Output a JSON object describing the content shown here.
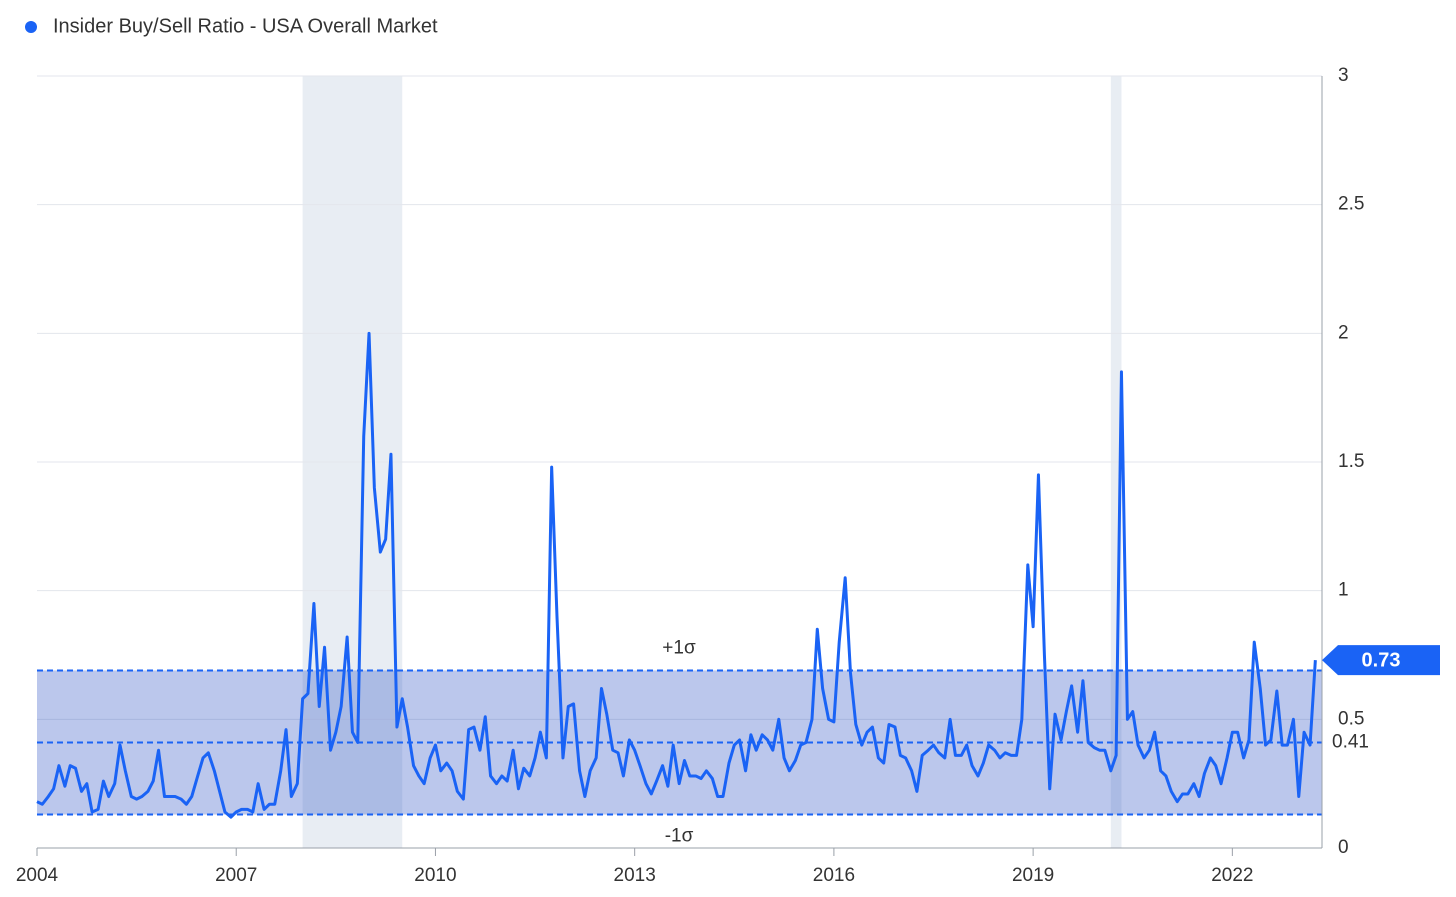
{
  "chart_data": {
    "type": "line",
    "legend_label_dot_color": "#1a63f5",
    "series": [
      {
        "name": "Insider Buy/Sell Ratio - USA Overall Market",
        "color": "#1a63f5",
        "values": [
          0.18,
          0.17,
          0.2,
          0.23,
          0.32,
          0.24,
          0.32,
          0.31,
          0.22,
          0.25,
          0.14,
          0.15,
          0.26,
          0.2,
          0.25,
          0.4,
          0.3,
          0.2,
          0.19,
          0.2,
          0.22,
          0.26,
          0.38,
          0.2,
          0.2,
          0.2,
          0.19,
          0.17,
          0.2,
          0.28,
          0.35,
          0.37,
          0.3,
          0.22,
          0.14,
          0.12,
          0.14,
          0.15,
          0.15,
          0.14,
          0.25,
          0.15,
          0.17,
          0.17,
          0.3,
          0.46,
          0.2,
          0.25,
          0.58,
          0.6,
          0.95,
          0.55,
          0.78,
          0.38,
          0.45,
          0.55,
          0.82,
          0.45,
          0.41,
          1.6,
          2.0,
          1.4,
          1.15,
          1.2,
          1.53,
          0.47,
          0.58,
          0.47,
          0.32,
          0.28,
          0.25,
          0.35,
          0.4,
          0.3,
          0.33,
          0.3,
          0.22,
          0.19,
          0.46,
          0.47,
          0.38,
          0.51,
          0.28,
          0.25,
          0.28,
          0.26,
          0.38,
          0.23,
          0.31,
          0.28,
          0.35,
          0.45,
          0.35,
          1.48,
          0.9,
          0.35,
          0.55,
          0.56,
          0.3,
          0.2,
          0.3,
          0.35,
          0.62,
          0.52,
          0.38,
          0.37,
          0.28,
          0.42,
          0.38,
          0.32,
          0.25,
          0.21,
          0.26,
          0.32,
          0.24,
          0.4,
          0.25,
          0.34,
          0.28,
          0.28,
          0.27,
          0.3,
          0.27,
          0.2,
          0.2,
          0.33,
          0.4,
          0.42,
          0.3,
          0.44,
          0.38,
          0.44,
          0.42,
          0.38,
          0.5,
          0.35,
          0.3,
          0.34,
          0.4,
          0.41,
          0.5,
          0.85,
          0.62,
          0.5,
          0.49,
          0.8,
          1.05,
          0.68,
          0.48,
          0.4,
          0.45,
          0.47,
          0.35,
          0.33,
          0.48,
          0.47,
          0.36,
          0.35,
          0.3,
          0.22,
          0.36,
          0.38,
          0.4,
          0.37,
          0.35,
          0.5,
          0.36,
          0.36,
          0.4,
          0.32,
          0.28,
          0.33,
          0.4,
          0.38,
          0.35,
          0.37,
          0.36,
          0.36,
          0.5,
          1.1,
          0.86,
          1.45,
          0.75,
          0.23,
          0.52,
          0.42,
          0.53,
          0.63,
          0.45,
          0.65,
          0.41,
          0.39,
          0.38,
          0.38,
          0.3,
          0.36,
          1.85,
          0.5,
          0.53,
          0.4,
          0.35,
          0.38,
          0.45,
          0.3,
          0.28,
          0.22,
          0.18,
          0.21,
          0.21,
          0.25,
          0.2,
          0.29,
          0.35,
          0.32,
          0.25,
          0.35,
          0.45,
          0.45,
          0.35,
          0.42,
          0.8,
          0.62,
          0.4,
          0.42,
          0.61,
          0.4,
          0.4,
          0.5,
          0.2,
          0.45,
          0.4,
          0.73
        ]
      }
    ],
    "x": [
      2004,
      2004.08,
      2004.17,
      2004.25,
      2004.33,
      2004.42,
      2004.5,
      2004.58,
      2004.67,
      2004.75,
      2004.83,
      2004.92,
      2005,
      2005.08,
      2005.17,
      2005.25,
      2005.33,
      2005.42,
      2005.5,
      2005.58,
      2005.67,
      2005.75,
      2005.83,
      2005.92,
      2006,
      2006.08,
      2006.17,
      2006.25,
      2006.33,
      2006.42,
      2006.5,
      2006.58,
      2006.67,
      2006.75,
      2006.83,
      2006.92,
      2007,
      2007.08,
      2007.17,
      2007.25,
      2007.33,
      2007.42,
      2007.5,
      2007.58,
      2007.67,
      2007.75,
      2007.83,
      2007.92,
      2008,
      2008.08,
      2008.17,
      2008.25,
      2008.33,
      2008.42,
      2008.5,
      2008.58,
      2008.67,
      2008.75,
      2008.83,
      2008.92,
      2009,
      2009.08,
      2009.17,
      2009.25,
      2009.33,
      2009.42,
      2009.5,
      2009.58,
      2009.67,
      2009.75,
      2009.83,
      2009.92,
      2010,
      2010.08,
      2010.17,
      2010.25,
      2010.33,
      2010.42,
      2010.5,
      2010.58,
      2010.67,
      2010.75,
      2010.83,
      2010.92,
      2011,
      2011.08,
      2011.17,
      2011.25,
      2011.33,
      2011.42,
      2011.5,
      2011.58,
      2011.67,
      2011.75,
      2011.83,
      2011.92,
      2012,
      2012.08,
      2012.17,
      2012.25,
      2012.33,
      2012.42,
      2012.5,
      2012.58,
      2012.67,
      2012.75,
      2012.83,
      2012.92,
      2013,
      2013.08,
      2013.17,
      2013.25,
      2013.33,
      2013.42,
      2013.5,
      2013.58,
      2013.67,
      2013.75,
      2013.83,
      2013.92,
      2014,
      2014.08,
      2014.17,
      2014.25,
      2014.33,
      2014.42,
      2014.5,
      2014.58,
      2014.67,
      2014.75,
      2014.83,
      2014.92,
      2015,
      2015.08,
      2015.17,
      2015.25,
      2015.33,
      2015.42,
      2015.5,
      2015.58,
      2015.67,
      2015.75,
      2015.83,
      2015.92,
      2016,
      2016.08,
      2016.17,
      2016.25,
      2016.33,
      2016.42,
      2016.5,
      2016.58,
      2016.67,
      2016.75,
      2016.83,
      2016.92,
      2017,
      2017.08,
      2017.17,
      2017.25,
      2017.33,
      2017.42,
      2017.5,
      2017.58,
      2017.67,
      2017.75,
      2017.83,
      2017.92,
      2018,
      2018.08,
      2018.17,
      2018.25,
      2018.33,
      2018.42,
      2018.5,
      2018.58,
      2018.67,
      2018.75,
      2018.83,
      2018.92,
      2019,
      2019.08,
      2019.17,
      2019.25,
      2019.33,
      2019.42,
      2019.5,
      2019.58,
      2019.67,
      2019.75,
      2019.83,
      2019.92,
      2020,
      2020.08,
      2020.17,
      2020.25,
      2020.33,
      2020.42,
      2020.5,
      2020.58,
      2020.67,
      2020.75,
      2020.83,
      2020.92,
      2021,
      2021.08,
      2021.17,
      2021.25,
      2021.33,
      2021.42,
      2021.5,
      2021.58,
      2021.67,
      2021.75,
      2021.83,
      2021.92,
      2022,
      2022.08,
      2022.17,
      2022.25,
      2022.33,
      2022.42,
      2022.5,
      2022.58,
      2022.67,
      2022.75,
      2022.83,
      2022.92,
      2023,
      2023.08,
      2023.17,
      2023.25
    ],
    "xlim": [
      2004,
      2023.35
    ],
    "xticks": [
      2004,
      2007,
      2010,
      2013,
      2016,
      2019,
      2022
    ],
    "ylim": [
      0,
      3
    ],
    "yticks": [
      0,
      0.5,
      1,
      1.5,
      2,
      2.5,
      3
    ],
    "grid": true,
    "shaded_ranges": [
      [
        2008,
        2009.5
      ],
      [
        2020.17,
        2020.33
      ]
    ],
    "mean": 0.41,
    "plus_sigma": {
      "value": 0.69,
      "label": "+1σ"
    },
    "minus_sigma": {
      "value": 0.13,
      "label": "-1σ"
    },
    "last_value": 0.73,
    "band_color": "#2b52c4"
  }
}
